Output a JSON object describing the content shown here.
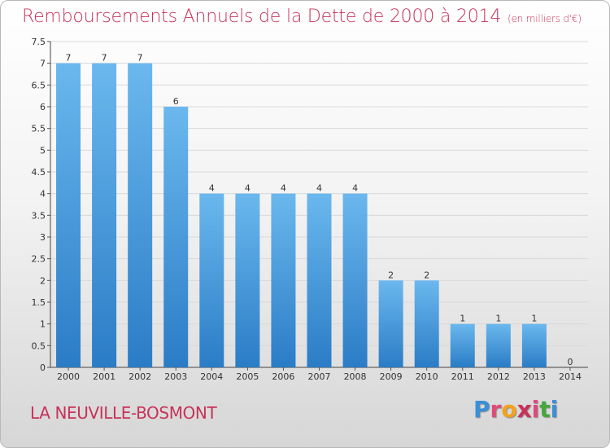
{
  "header": {
    "title": "Remboursements Annuels de la Dette de 2000 à 2014",
    "unit": "(en milliers d'€)"
  },
  "footer": {
    "commune": "LA NEUVILLE-BOSMONT",
    "logo": [
      "P",
      "r",
      "o",
      "x",
      "i",
      "t",
      "i"
    ],
    "logo_colors": [
      "#3a8fd6",
      "#e04a7a",
      "#f2a21c",
      "#c8325a",
      "#e04a7a",
      "#46a83c",
      "#3a8fd6"
    ]
  },
  "colors": {
    "bar_top": "#6bb8ee",
    "bar_bottom": "#2a7cc6",
    "title": "#c8325a"
  },
  "chart_data": {
    "type": "bar",
    "categories": [
      "2000",
      "2001",
      "2002",
      "2003",
      "2004",
      "2005",
      "2006",
      "2007",
      "2008",
      "2009",
      "2010",
      "2011",
      "2012",
      "2013",
      "2014"
    ],
    "values": [
      7,
      7,
      7,
      6,
      4,
      4,
      4,
      4,
      4,
      2,
      2,
      1,
      1,
      1,
      0
    ],
    "data_labels": [
      "7",
      "7",
      "7",
      "6",
      "4",
      "4",
      "4",
      "4",
      "4",
      "2",
      "2",
      "1",
      "1",
      "1",
      "0"
    ],
    "yticks": [
      0,
      0.5,
      1,
      1.5,
      2,
      2.5,
      3,
      3.5,
      4,
      4.5,
      5,
      5.5,
      6,
      6.5,
      7,
      7.5
    ],
    "ytick_labels": [
      "0",
      "0.5",
      "1",
      "1.5",
      "2",
      "2.5",
      "3",
      "3.5",
      "4",
      "4.5",
      "5",
      "5.5",
      "6",
      "6.5",
      "7",
      "7.5"
    ],
    "ylim": [
      0,
      7.5
    ],
    "grid": true
  }
}
